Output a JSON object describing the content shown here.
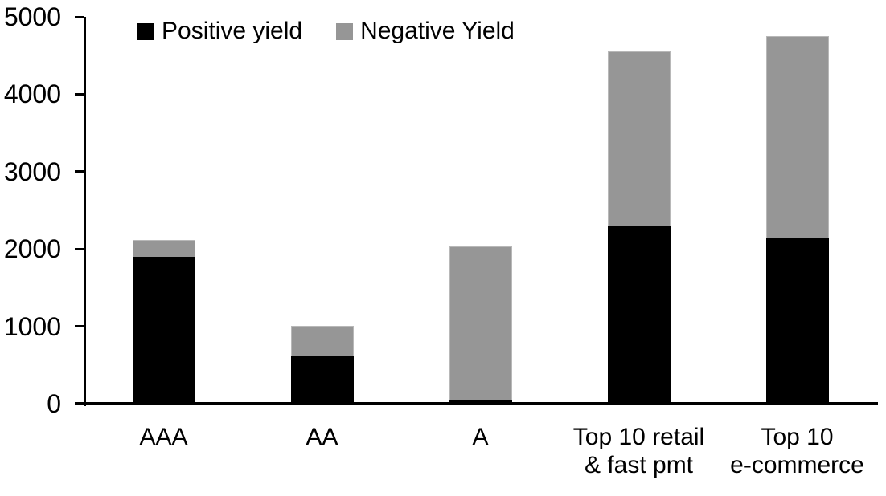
{
  "chart_data": {
    "type": "bar",
    "stacked": true,
    "title": "",
    "xlabel": "",
    "ylabel": "",
    "categories": [
      "AAA",
      "AA",
      "A",
      "Top 10 retail\n& fast pmt",
      "Top 10\ne-commerce"
    ],
    "series": [
      {
        "name": "Positive yield",
        "color": "#000000",
        "values": [
          1900,
          620,
          50,
          2290,
          2150
        ]
      },
      {
        "name": "Negative Yield",
        "color": "#969696",
        "values": [
          220,
          385,
          1985,
          2265,
          2600
        ]
      }
    ],
    "ylim": [
      0,
      5000
    ],
    "yticks": [
      0,
      1000,
      2000,
      3000,
      4000,
      5000
    ],
    "grid": false,
    "legend_position": "top"
  }
}
